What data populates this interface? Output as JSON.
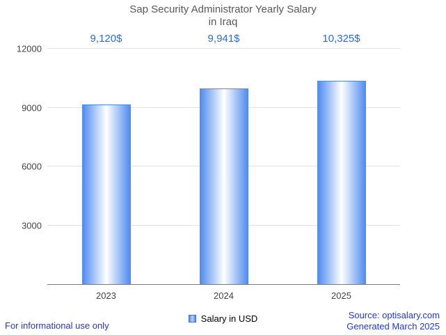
{
  "title": {
    "line1": "Sap Security Administrator Yearly Salary",
    "line2": "in Iraq"
  },
  "chart_data": {
    "type": "bar",
    "categories": [
      "2023",
      "2024",
      "2025"
    ],
    "series": [
      {
        "name": "Salary in USD",
        "values": [
          9120,
          9941,
          10325
        ]
      }
    ],
    "annotations": [
      "9,120$",
      "9,941$",
      "10,325$"
    ],
    "ylim": [
      0,
      12000
    ],
    "yticks": [
      3000,
      6000,
      9000,
      12000
    ],
    "grid": true,
    "legend_position": "bottom",
    "xlabel": "",
    "ylabel": ""
  },
  "legend": {
    "label": "Salary in USD"
  },
  "footer": {
    "left": "For informational use only",
    "source": "Source: optisalary.com",
    "generated": "Generated March 2025"
  },
  "colors": {
    "bar_edge": "#4c89ef",
    "bar_center": "#ffffff",
    "annotation": "#2b6bdb",
    "footer_text": "#2239cf",
    "title_text": "#585858"
  }
}
